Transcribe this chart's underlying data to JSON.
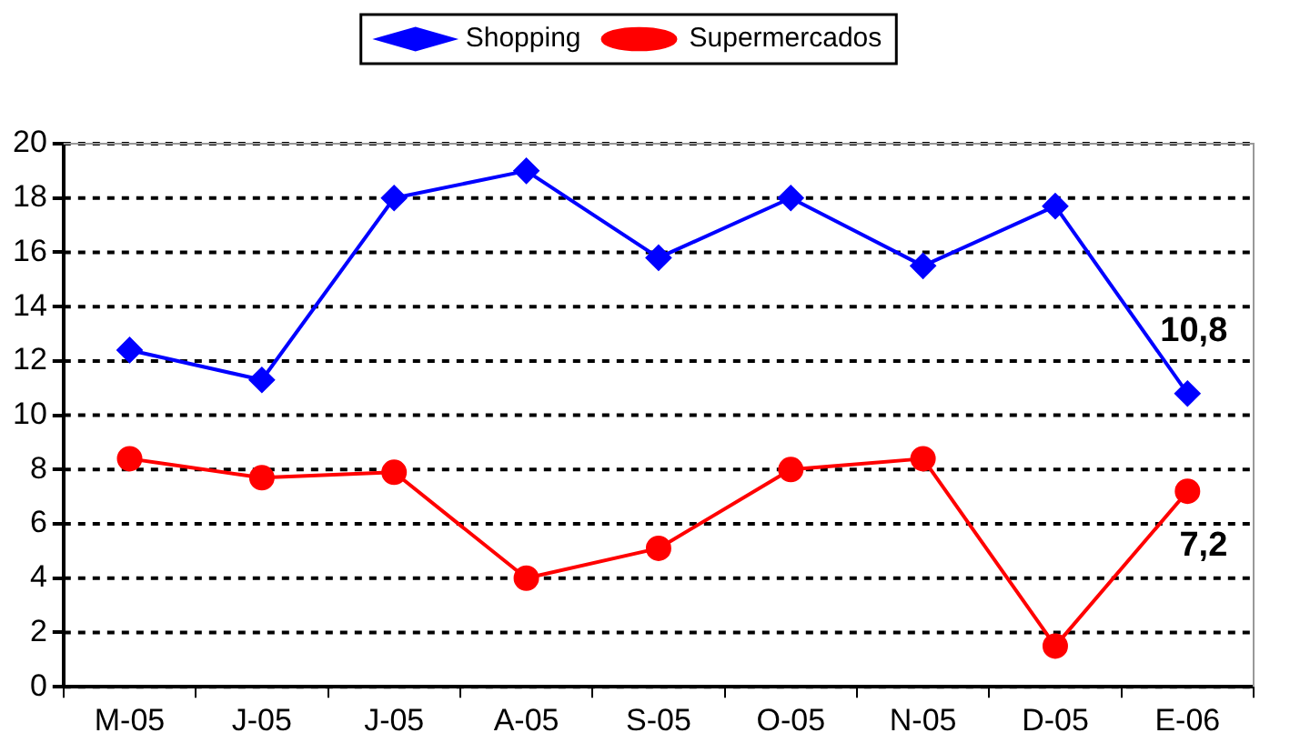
{
  "chart_data": {
    "type": "line",
    "categories": [
      "M-05",
      "J-05",
      "J-05",
      "A-05",
      "S-05",
      "O-05",
      "N-05",
      "D-05",
      "E-06"
    ],
    "series": [
      {
        "name": "Shopping",
        "color": "#0000ff",
        "marker": "diamond",
        "values": [
          12.4,
          11.3,
          18.0,
          19.0,
          15.8,
          18.0,
          15.5,
          17.7,
          10.8
        ],
        "value_labels": [
          null,
          null,
          null,
          null,
          null,
          null,
          null,
          null,
          "10,8"
        ]
      },
      {
        "name": "Supermercados",
        "color": "#ff0000",
        "marker": "circle",
        "values": [
          8.4,
          7.7,
          7.9,
          4.0,
          5.1,
          8.0,
          8.4,
          1.5,
          7.2
        ],
        "value_labels": [
          null,
          null,
          null,
          null,
          null,
          null,
          null,
          null,
          "7,2"
        ]
      }
    ],
    "ylim": [
      0,
      20
    ],
    "yticks": [
      0,
      2,
      4,
      6,
      8,
      10,
      12,
      14,
      16,
      18,
      20
    ],
    "grid": "y",
    "legend": "top",
    "line_style": "solid"
  }
}
